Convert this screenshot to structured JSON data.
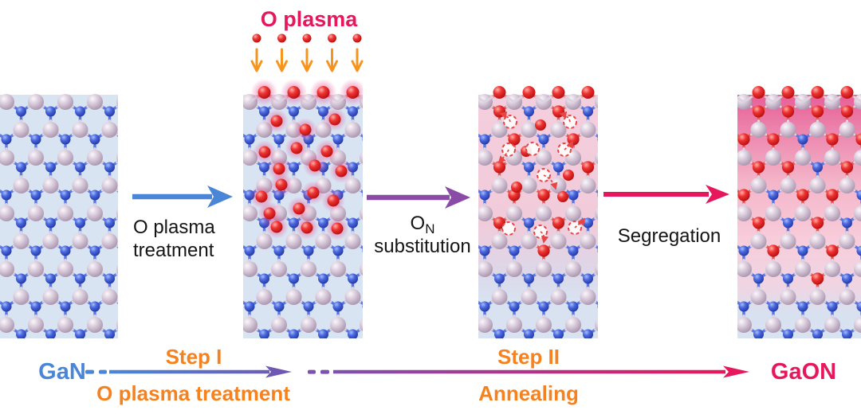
{
  "plasma_source": {
    "label": "O plasma",
    "color": "#e6175c"
  },
  "colors": {
    "accent_pink": "#e6175c",
    "accent_orange": "#f6821f",
    "accent_blue": "#4a86d8",
    "accent_purple": "#8a4ba6",
    "ga_atom": "#d5c6d8",
    "n_atom": "#3b5cd9",
    "o_atom": "#e62929",
    "panel_blue_bg": "#d9e4f2",
    "panel_pink_bg": "#f5cedd"
  },
  "process_arrows": [
    {
      "name": "o-plasma-treatment",
      "label_line1": "O plasma",
      "label_line2": "treatment",
      "color": "#4a86d8"
    },
    {
      "name": "on-substitution",
      "label_main": "O",
      "label_sub": "N",
      "label_line2": "substitution",
      "color": "#8a4ba6"
    },
    {
      "name": "segregation",
      "label": "Segregation",
      "color": "#e6175c"
    }
  ],
  "timeline": {
    "start_label": "GaN",
    "end_label": "GaON",
    "step1_title": "Step I",
    "step1_subtitle": "O plasma treatment",
    "step2_title": "Step II",
    "step2_subtitle": "Annealing"
  },
  "panels": [
    {
      "name": "gan-pristine",
      "stage": "pristine"
    },
    {
      "name": "o-plasma-treated",
      "stage": "plasma"
    },
    {
      "name": "on-substitution",
      "stage": "substitution",
      "o_sites": [
        [
          0,
          1,
          0,
          1,
          0,
          0
        ],
        [
          0,
          0,
          1,
          0,
          1,
          0
        ],
        [
          0,
          1,
          0,
          0,
          1,
          0
        ],
        [
          0,
          0,
          1,
          1,
          0,
          0
        ],
        [
          0,
          1,
          0,
          1,
          0,
          0
        ],
        [
          0,
          0,
          0,
          1,
          0,
          0
        ],
        [
          0,
          0,
          0,
          0,
          0,
          0
        ],
        [
          0,
          0,
          0,
          0,
          0,
          0
        ],
        [
          0,
          0,
          0,
          0,
          0,
          0
        ]
      ]
    },
    {
      "name": "gaon-segregated",
      "stage": "segregation",
      "o_sites": [
        [
          1,
          1,
          1,
          1,
          1,
          1
        ],
        [
          0,
          1,
          1,
          0,
          1,
          1
        ],
        [
          1,
          1,
          1,
          0,
          1,
          0
        ],
        [
          0,
          1,
          0,
          1,
          1,
          0
        ],
        [
          0,
          1,
          0,
          1,
          0,
          0
        ],
        [
          0,
          0,
          1,
          0,
          1,
          0
        ],
        [
          0,
          0,
          0,
          1,
          0,
          0
        ],
        [
          0,
          0,
          0,
          0,
          0,
          0
        ],
        [
          0,
          0,
          0,
          0,
          0,
          0
        ]
      ]
    }
  ]
}
